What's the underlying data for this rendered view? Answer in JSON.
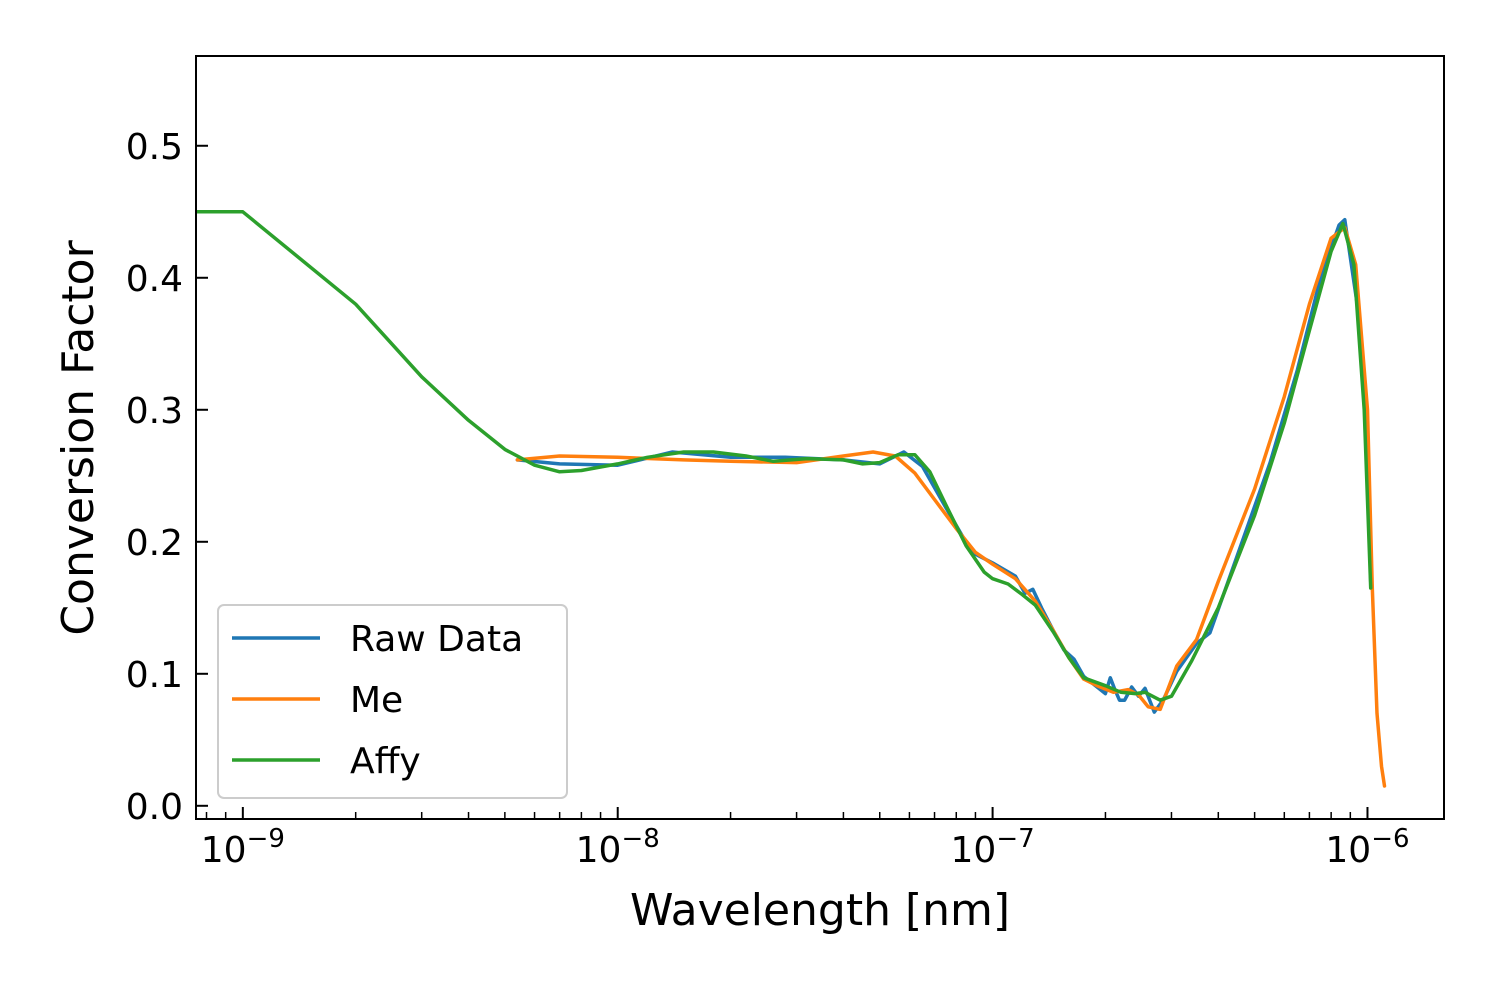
{
  "chart_data": {
    "type": "line",
    "title": "",
    "xlabel": "Wavelength [nm]",
    "ylabel": "Conversion Factor",
    "x_scale": "log",
    "xlim": [
      7.5e-10,
      1.6e-06
    ],
    "ylim": [
      -0.01,
      0.568
    ],
    "x_ticks": [
      {
        "value": 1e-09,
        "base": "10",
        "exp": "−9"
      },
      {
        "value": 1e-08,
        "base": "10",
        "exp": "−8"
      },
      {
        "value": 1e-07,
        "base": "10",
        "exp": "−7"
      },
      {
        "value": 1e-06,
        "base": "10",
        "exp": "−6"
      }
    ],
    "y_ticks": [
      {
        "value": 0.0,
        "label": "0.0"
      },
      {
        "value": 0.1,
        "label": "0.1"
      },
      {
        "value": 0.2,
        "label": "0.2"
      },
      {
        "value": 0.3,
        "label": "0.3"
      },
      {
        "value": 0.4,
        "label": "0.4"
      },
      {
        "value": 0.5,
        "label": "0.5"
      }
    ],
    "grid": false,
    "legend_position": "lower-left",
    "series": [
      {
        "name": "Raw Data",
        "color": "#1f77b4",
        "points": [
          [
            5.4e-09,
            0.262
          ],
          [
            7e-09,
            0.259
          ],
          [
            1e-08,
            0.258
          ],
          [
            1.4e-08,
            0.268
          ],
          [
            2e-08,
            0.264
          ],
          [
            2.8e-08,
            0.264
          ],
          [
            4e-08,
            0.262
          ],
          [
            5e-08,
            0.259
          ],
          [
            5.8e-08,
            0.268
          ],
          [
            6.5e-08,
            0.257
          ],
          [
            7.5e-08,
            0.226
          ],
          [
            8.8e-08,
            0.192
          ],
          [
            1e-07,
            0.184
          ],
          [
            1.15e-07,
            0.174
          ],
          [
            1.22e-07,
            0.161
          ],
          [
            1.28e-07,
            0.164
          ],
          [
            1.35e-07,
            0.15
          ],
          [
            1.45e-07,
            0.133
          ],
          [
            1.55e-07,
            0.118
          ],
          [
            1.65e-07,
            0.111
          ],
          [
            1.75e-07,
            0.098
          ],
          [
            1.9e-07,
            0.09
          ],
          [
            2e-07,
            0.085
          ],
          [
            2.06e-07,
            0.097
          ],
          [
            2.12e-07,
            0.088
          ],
          [
            2.18e-07,
            0.08
          ],
          [
            2.25e-07,
            0.08
          ],
          [
            2.35e-07,
            0.09
          ],
          [
            2.45e-07,
            0.083
          ],
          [
            2.55e-07,
            0.089
          ],
          [
            2.7e-07,
            0.071
          ],
          [
            2.85e-07,
            0.08
          ],
          [
            3.1e-07,
            0.102
          ],
          [
            3.5e-07,
            0.123
          ],
          [
            3.8e-07,
            0.131
          ],
          [
            4.5e-07,
            0.19
          ],
          [
            5.5e-07,
            0.26
          ],
          [
            6.5e-07,
            0.33
          ],
          [
            7.5e-07,
            0.4
          ],
          [
            8.4e-07,
            0.44
          ],
          [
            8.7e-07,
            0.444
          ],
          [
            9.5e-07,
            0.37
          ],
          [
            1e-06,
            0.28
          ],
          [
            1.02e-06,
            0.17
          ]
        ]
      },
      {
        "name": "Me",
        "color": "#ff7f0e",
        "points": [
          [
            5.4e-09,
            0.262
          ],
          [
            7e-09,
            0.265
          ],
          [
            1e-08,
            0.264
          ],
          [
            1.5e-08,
            0.262
          ],
          [
            2e-08,
            0.261
          ],
          [
            3e-08,
            0.26
          ],
          [
            4e-08,
            0.265
          ],
          [
            4.8e-08,
            0.268
          ],
          [
            5.5e-08,
            0.265
          ],
          [
            6.2e-08,
            0.252
          ],
          [
            7e-08,
            0.232
          ],
          [
            8e-08,
            0.21
          ],
          [
            9e-08,
            0.192
          ],
          [
            1e-07,
            0.183
          ],
          [
            1.15e-07,
            0.172
          ],
          [
            1.3e-07,
            0.155
          ],
          [
            1.45e-07,
            0.133
          ],
          [
            1.6e-07,
            0.112
          ],
          [
            1.75e-07,
            0.096
          ],
          [
            1.9e-07,
            0.091
          ],
          [
            2.1e-07,
            0.086
          ],
          [
            2.3e-07,
            0.088
          ],
          [
            2.45e-07,
            0.084
          ],
          [
            2.6e-07,
            0.075
          ],
          [
            2.8e-07,
            0.073
          ],
          [
            3.1e-07,
            0.106
          ],
          [
            3.5e-07,
            0.126
          ],
          [
            4e-07,
            0.17
          ],
          [
            5e-07,
            0.24
          ],
          [
            6e-07,
            0.31
          ],
          [
            7e-07,
            0.38
          ],
          [
            8e-07,
            0.43
          ],
          [
            8.7e-07,
            0.438
          ],
          [
            9.3e-07,
            0.41
          ],
          [
            1e-06,
            0.3
          ],
          [
            1.03e-06,
            0.165
          ],
          [
            1.06e-06,
            0.07
          ],
          [
            1.09e-06,
            0.03
          ],
          [
            1.11e-06,
            0.015
          ]
        ]
      },
      {
        "name": "Affy",
        "color": "#2ca02c",
        "points": [
          [
            7.5e-10,
            0.45
          ],
          [
            1e-09,
            0.45
          ],
          [
            2e-09,
            0.38
          ],
          [
            3e-09,
            0.325
          ],
          [
            4e-09,
            0.292
          ],
          [
            5e-09,
            0.27
          ],
          [
            6e-09,
            0.258
          ],
          [
            7e-09,
            0.253
          ],
          [
            8e-09,
            0.254
          ],
          [
            1e-08,
            0.259
          ],
          [
            1.2e-08,
            0.264
          ],
          [
            1.5e-08,
            0.268
          ],
          [
            1.8e-08,
            0.268
          ],
          [
            2.2e-08,
            0.265
          ],
          [
            2.6e-08,
            0.261
          ],
          [
            3.2e-08,
            0.263
          ],
          [
            4e-08,
            0.262
          ],
          [
            4.5e-08,
            0.259
          ],
          [
            5e-08,
            0.26
          ],
          [
            5.6e-08,
            0.266
          ],
          [
            6.2e-08,
            0.266
          ],
          [
            6.8e-08,
            0.253
          ],
          [
            7.5e-08,
            0.228
          ],
          [
            8.5e-08,
            0.197
          ],
          [
            9.5e-08,
            0.177
          ],
          [
            1e-07,
            0.172
          ],
          [
            1.1e-07,
            0.168
          ],
          [
            1.2e-07,
            0.16
          ],
          [
            1.3e-07,
            0.152
          ],
          [
            1.45e-07,
            0.132
          ],
          [
            1.6e-07,
            0.112
          ],
          [
            1.75e-07,
            0.097
          ],
          [
            2e-07,
            0.091
          ],
          [
            2.2e-07,
            0.086
          ],
          [
            2.4e-07,
            0.085
          ],
          [
            2.55e-07,
            0.086
          ],
          [
            2.8e-07,
            0.08
          ],
          [
            3e-07,
            0.083
          ],
          [
            3.4e-07,
            0.11
          ],
          [
            4e-07,
            0.15
          ],
          [
            5e-07,
            0.22
          ],
          [
            6e-07,
            0.29
          ],
          [
            7e-07,
            0.36
          ],
          [
            8e-07,
            0.42
          ],
          [
            8.6e-07,
            0.441
          ],
          [
            9.2e-07,
            0.41
          ],
          [
            9.8e-07,
            0.3
          ],
          [
            1.02e-06,
            0.165
          ]
        ]
      }
    ]
  }
}
